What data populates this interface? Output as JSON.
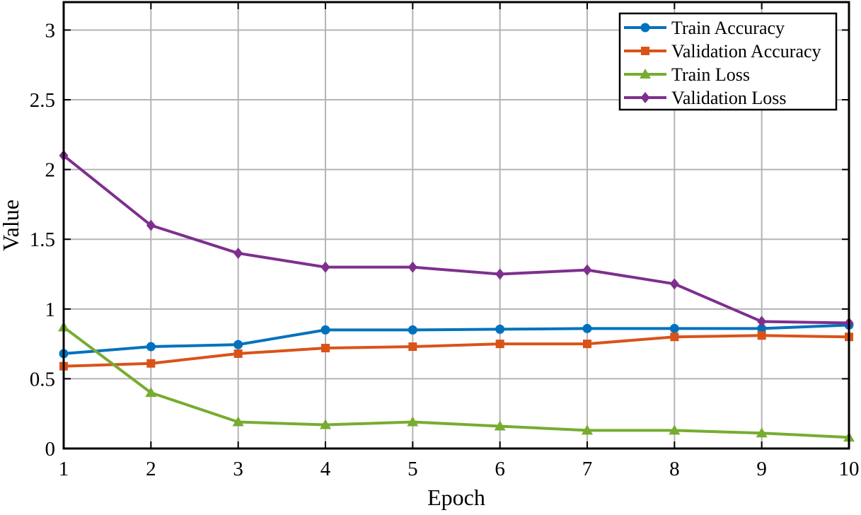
{
  "chart_data": {
    "type": "line",
    "title": "",
    "xlabel": "Epoch",
    "ylabel": "Value",
    "xlim": [
      1,
      10
    ],
    "ylim": [
      0,
      3.2
    ],
    "x_ticks": [
      1,
      2,
      3,
      4,
      5,
      6,
      7,
      8,
      9,
      10
    ],
    "y_ticks": [
      0,
      0.5,
      1,
      1.5,
      2,
      2.5,
      3
    ],
    "x_tick_labels": [
      "1",
      "2",
      "3",
      "4",
      "5",
      "6",
      "7",
      "8",
      "9",
      "10"
    ],
    "y_tick_labels": [
      "0",
      "0.5",
      "1",
      "1.5",
      "2",
      "2.5",
      "3"
    ],
    "grid": true,
    "legend_position": "top-right",
    "x": [
      1,
      2,
      3,
      4,
      5,
      6,
      7,
      8,
      9,
      10
    ],
    "series": [
      {
        "name": "Train Accuracy",
        "color": "#0072BD",
        "marker": "circle",
        "values": [
          0.68,
          0.73,
          0.745,
          0.85,
          0.85,
          0.855,
          0.86,
          0.86,
          0.86,
          0.885
        ]
      },
      {
        "name": "Validation Accuracy",
        "color": "#D95319",
        "marker": "square",
        "values": [
          0.59,
          0.61,
          0.68,
          0.72,
          0.73,
          0.75,
          0.75,
          0.8,
          0.81,
          0.8
        ]
      },
      {
        "name": "Train Loss",
        "color": "#77AC30",
        "marker": "triangle",
        "values": [
          0.87,
          0.4,
          0.19,
          0.17,
          0.19,
          0.16,
          0.13,
          0.13,
          0.11,
          0.08
        ]
      },
      {
        "name": "Validation Loss",
        "color": "#7E2F8E",
        "marker": "diamond",
        "values": [
          2.1,
          1.6,
          1.4,
          1.3,
          1.3,
          1.25,
          1.28,
          1.18,
          0.91,
          0.9
        ]
      }
    ]
  }
}
